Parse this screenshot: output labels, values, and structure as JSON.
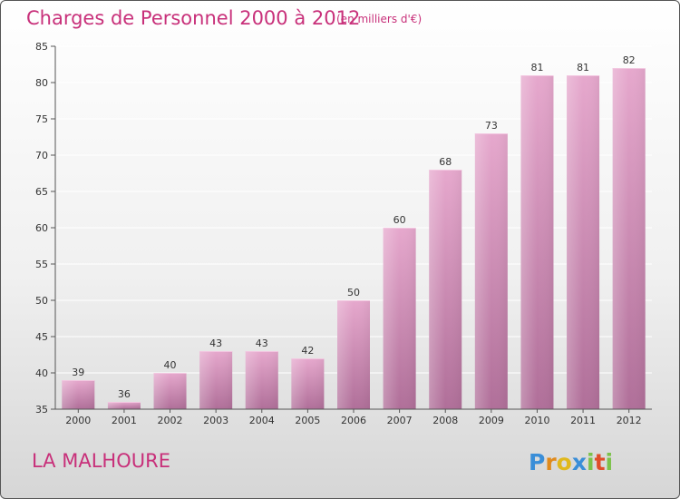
{
  "colors": {
    "title": "#c8307a",
    "bar_top": "#e6a8cd",
    "bar_bottom": "#b06f99",
    "axis": "#555555",
    "grid": "#ffffff"
  },
  "location_name": "LA MALHOURE",
  "brand": {
    "letters": [
      "P",
      "r",
      "o",
      "x",
      "i",
      "t",
      "i"
    ]
  },
  "chart_data": {
    "type": "bar",
    "title": "Charges de Personnel 2000 à 2012",
    "subtitle": "(en milliers d'€)",
    "categories": [
      "2000",
      "2001",
      "2002",
      "2003",
      "2004",
      "2005",
      "2006",
      "2007",
      "2008",
      "2009",
      "2010",
      "2011",
      "2012"
    ],
    "values": [
      39,
      36,
      40,
      43,
      43,
      42,
      50,
      60,
      68,
      73,
      81,
      81,
      82
    ],
    "ylim": [
      35,
      85
    ],
    "yticks": [
      35,
      40,
      45,
      50,
      55,
      60,
      65,
      70,
      75,
      80,
      85
    ],
    "xlabel": "",
    "ylabel": "",
    "grid": true
  }
}
